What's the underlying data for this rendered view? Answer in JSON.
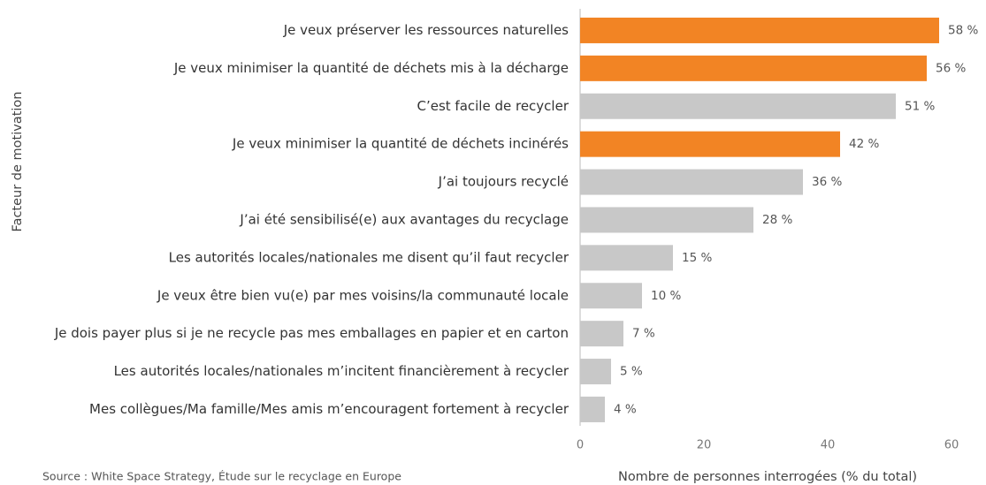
{
  "chart_data": {
    "type": "bar",
    "orientation": "horizontal",
    "ylabel": "Facteur de motivation",
    "xlabel": "Nombre de personnes interrogées (% du total)",
    "source": "Source : White Space Strategy, Étude sur le recyclage en Europe",
    "categories": [
      "Je veux préserver les ressources naturelles",
      "Je veux minimiser la quantité de déchets mis à la décharge",
      "C’est facile de recycler",
      "Je veux minimiser la quantité de déchets incinérés",
      "J’ai toujours recyclé",
      "J’ai été sensibilisé(e) aux avantages du recyclage",
      "Les autorités locales/nationales me disent qu’il faut recycler",
      "Je veux être bien vu(e) par mes voisins/la communauté locale",
      "Je dois payer plus si je ne recycle pas mes emballages en papier et en carton",
      "Les autorités locales/nationales m’incitent financièrement à recycler",
      "Mes collègues/Ma famille/Mes amis m’encouragent fortement à recycler"
    ],
    "values": [
      58,
      56,
      51,
      42,
      36,
      28,
      15,
      10,
      7,
      5,
      4
    ],
    "value_labels": [
      "58 %",
      "56 %",
      "51 %",
      "42 %",
      "36 %",
      "28 %",
      "15 %",
      "10 %",
      "7 %",
      "5 %",
      "4 %"
    ],
    "colors": [
      "#f28424",
      "#f28424",
      "#c8c8c8",
      "#f28424",
      "#c8c8c8",
      "#c8c8c8",
      "#c8c8c8",
      "#c8c8c8",
      "#c8c8c8",
      "#c8c8c8",
      "#c8c8c8"
    ],
    "xlim": [
      0,
      60
    ],
    "xticks": [
      0,
      20,
      40,
      60
    ],
    "grid": false
  }
}
